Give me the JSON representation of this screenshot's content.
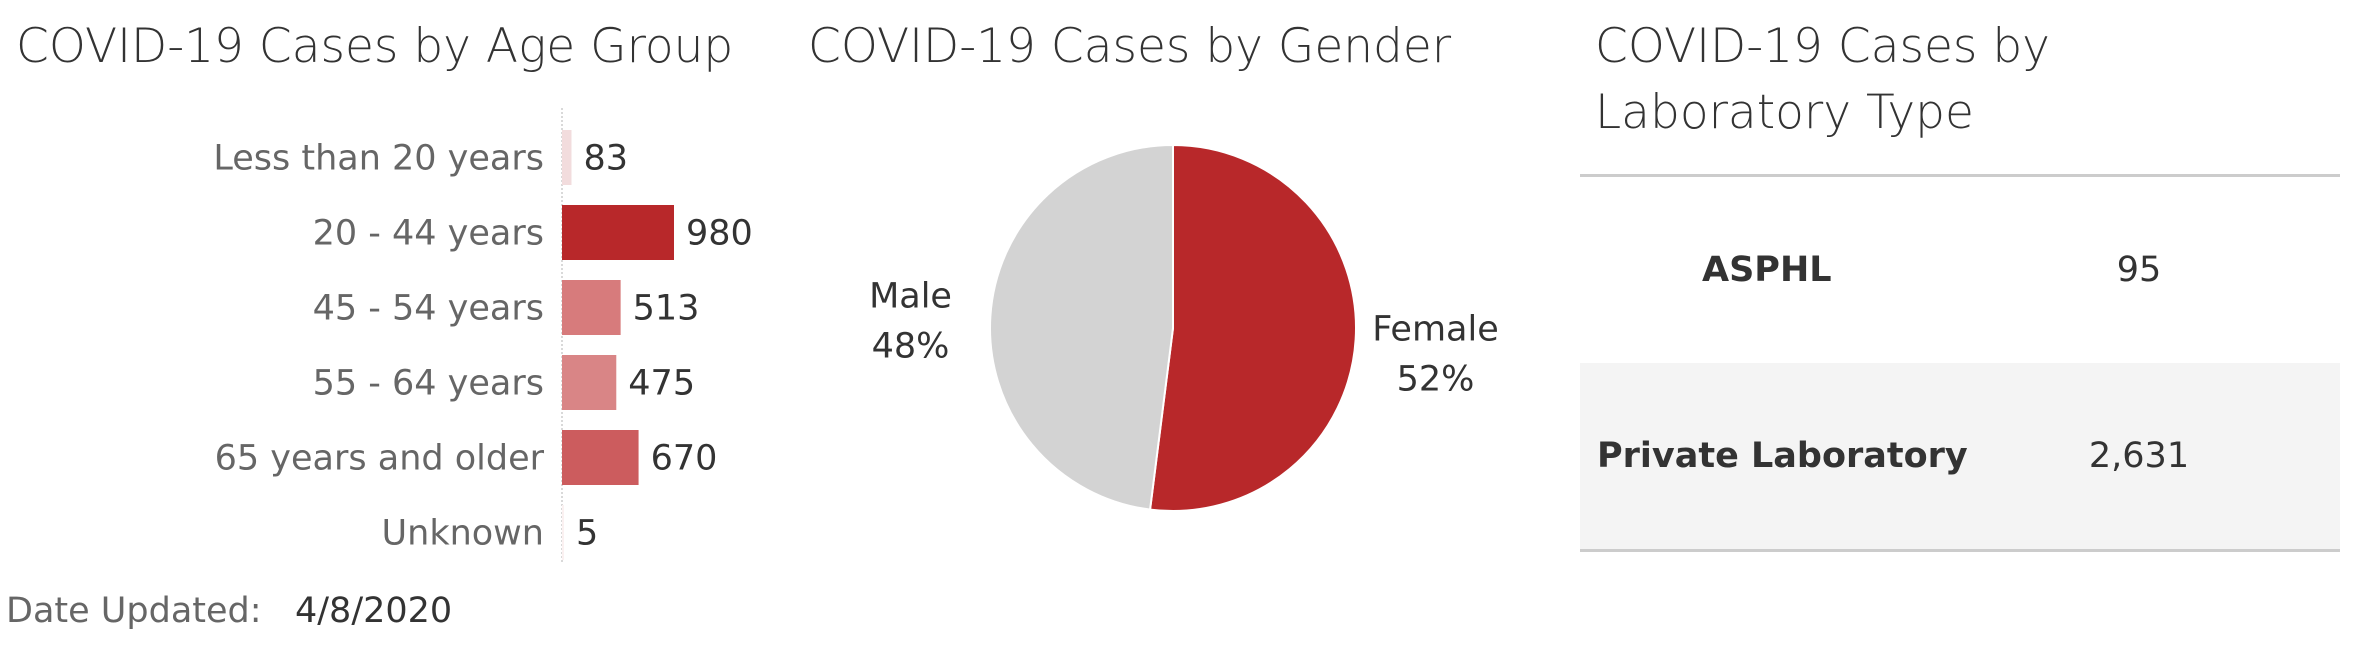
{
  "age_panel": {
    "title": "COVID-19 Cases by Age Group"
  },
  "gender_panel": {
    "title": "COVID-19 Cases by Gender"
  },
  "lab_panel": {
    "title": "COVID-19 Cases by Laboratory Type",
    "rows": [
      {
        "label": "ASPHL",
        "value": "95"
      },
      {
        "label": "Private Laboratory",
        "value": "2,631"
      }
    ]
  },
  "footer": {
    "date_label": "Date Updated:",
    "date_value": "4/8/2020"
  },
  "colors": {
    "accent": "#b8282a",
    "pie_other": "#d3d3d3",
    "table_alt_row": "#f4f4f4",
    "separator": "#cccccc"
  },
  "chart_data": [
    {
      "type": "bar",
      "orientation": "horizontal",
      "title": "COVID-19 Cases by Age Group",
      "categories": [
        "Less than 20 years",
        "20 - 44 years",
        "45 - 54 years",
        "55 - 64 years",
        "65 years and older",
        "Unknown"
      ],
      "values": [
        83,
        980,
        513,
        475,
        670,
        5
      ],
      "value_labels": [
        "83",
        "980",
        "513",
        "475",
        "670",
        "5"
      ],
      "colors": [
        "#f2dcdd",
        "#b8282a",
        "#d77b7c",
        "#d98586",
        "#cc5c5e",
        "#fbf1f1"
      ],
      "xlabel": "",
      "ylabel": "",
      "grid": false
    },
    {
      "type": "pie",
      "title": "COVID-19 Cases by Gender",
      "categories": [
        "Female",
        "Male"
      ],
      "values": [
        52,
        48
      ],
      "value_labels": [
        "52%",
        "48%"
      ],
      "colors": [
        "#b8282a",
        "#d3d3d3"
      ]
    },
    {
      "type": "table",
      "title": "COVID-19 Cases by Laboratory Type",
      "columns": [
        "",
        ""
      ],
      "rows": [
        [
          "ASPHL",
          95
        ],
        [
          "Private Laboratory",
          2631
        ]
      ]
    }
  ]
}
